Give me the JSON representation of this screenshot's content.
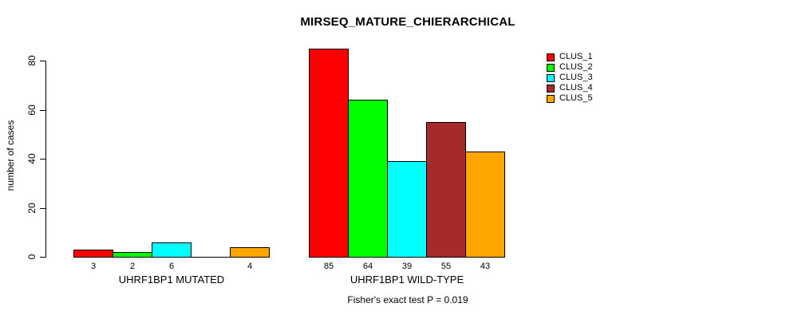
{
  "chart_data": {
    "type": "bar",
    "title": "MIRSEQ_MATURE_CHIERARCHICAL",
    "ylabel": "number of cases",
    "xlabel": "",
    "ylim": [
      0,
      85
    ],
    "y_ticks": [
      0,
      20,
      40,
      60,
      80
    ],
    "grid": false,
    "legend_position": "top-right",
    "categories": [
      "UHRF1BP1 MUTATED",
      "UHRF1BP1 WILD-TYPE"
    ],
    "series": [
      {
        "name": "CLUS_1",
        "color": "#ff0000",
        "values": [
          3,
          85
        ]
      },
      {
        "name": "CLUS_2",
        "color": "#00ff00",
        "values": [
          2,
          64
        ]
      },
      {
        "name": "CLUS_3",
        "color": "#00ffff",
        "values": [
          6,
          39
        ]
      },
      {
        "name": "CLUS_4",
        "color": "#a52a2a",
        "values": [
          0,
          55
        ]
      },
      {
        "name": "CLUS_5",
        "color": "#ffa500",
        "values": [
          4,
          43
        ]
      }
    ],
    "bar_labels": [
      [
        "3",
        "2",
        "6",
        "",
        "4"
      ],
      [
        "85",
        "64",
        "39",
        "55",
        "43"
      ]
    ],
    "annotation": "Fisher's exact test P = 0.019"
  }
}
